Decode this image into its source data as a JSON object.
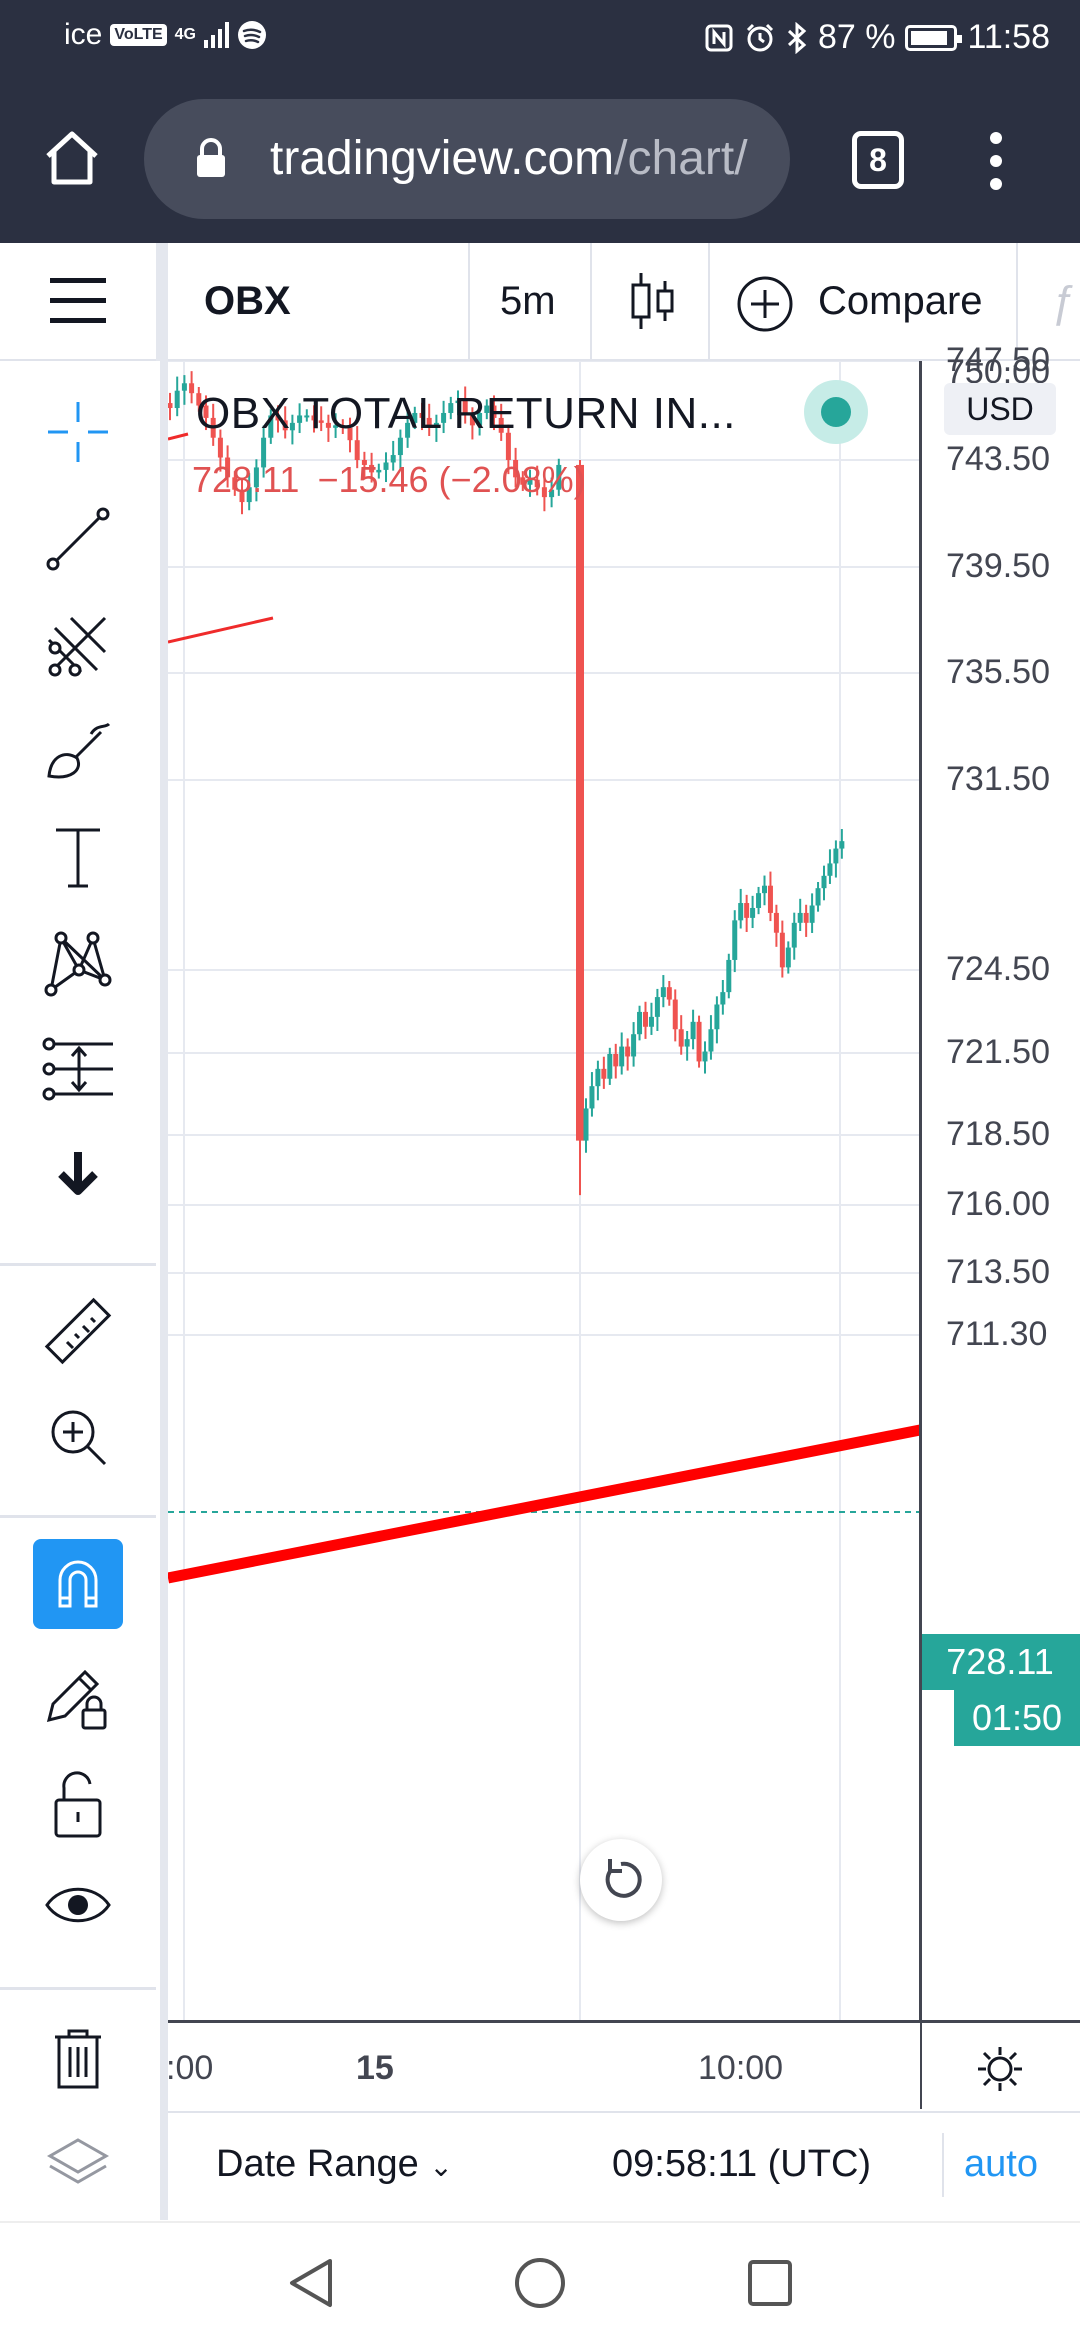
{
  "status_bar": {
    "carrier": "ice",
    "volte": "VoLTE",
    "network": "4G",
    "battery": "87 %",
    "time": "11:58"
  },
  "browser": {
    "url_main": "tradingview.com",
    "url_rest": "/chart/",
    "tab_count": "8"
  },
  "toolbar": {
    "symbol": "OBX",
    "interval": "5m",
    "compare_label": "Compare"
  },
  "chart": {
    "title": "OBX TOTAL RETURN IN...",
    "last": "728.11",
    "change": "−15.46 (−2.08%)",
    "currency": "USD",
    "last_price_label": "728.11",
    "countdown": "01:50",
    "price_ticks": [
      "750.00",
      "747.50",
      "743.50",
      "739.50",
      "735.50",
      "731.50",
      "724.50",
      "721.50",
      "718.50",
      "716.00",
      "713.50",
      "711.30"
    ],
    "time_ticks": [
      ":00",
      "15",
      "10:00"
    ],
    "colors": {
      "up": "#26a69a",
      "down": "#ef5350",
      "trendline": "#ff0000",
      "grid": "#e6e9f0"
    }
  },
  "bottom_bar": {
    "date_range": "Date Range",
    "clock": "09:58:11 (UTC)",
    "auto": "auto"
  },
  "sidebar": {
    "icons": [
      "crosshair-icon",
      "trend-line-icon",
      "pitchfork-icon",
      "brush-icon",
      "text-icon",
      "pattern-icon",
      "prediction-icon",
      "more-arrow-icon",
      "ruler-icon",
      "zoom-in-icon",
      "magnet-icon",
      "lock-drawing-icon",
      "unlock-icon",
      "eye-icon",
      "trash-icon",
      "layers-icon"
    ]
  }
}
